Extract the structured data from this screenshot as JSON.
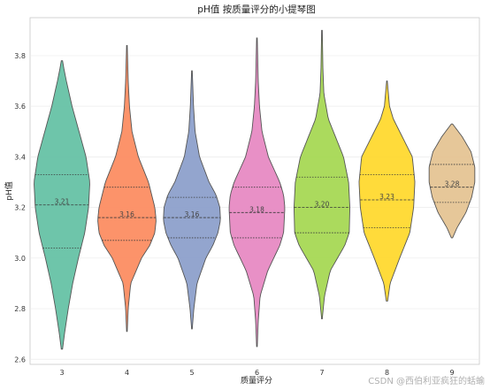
{
  "chart_data": {
    "type": "violin",
    "title": "pH值 按质量评分的小提琴图",
    "xlabel": "质量评分",
    "ylabel": "pH值",
    "ylim": [
      2.58,
      3.95
    ],
    "yticks": [
      "2.6",
      "2.8",
      "3.0",
      "3.2",
      "3.4",
      "3.6",
      "3.8"
    ],
    "grid": true,
    "categories": [
      "3",
      "4",
      "5",
      "6",
      "7",
      "8",
      "9"
    ],
    "colors": [
      "#66c2a5",
      "#fc8d62",
      "#8da0cb",
      "#e78ac3",
      "#a6d854",
      "#ffd92f",
      "#e5c494"
    ],
    "violins": [
      {
        "category": "3",
        "mean_label": "3.21",
        "min": 2.64,
        "max": 3.78,
        "q1": 3.04,
        "median": 3.21,
        "q3": 3.33,
        "profile": [
          [
            2.64,
            0.01
          ],
          [
            2.7,
            0.04
          ],
          [
            2.8,
            0.1
          ],
          [
            2.9,
            0.17
          ],
          [
            3.0,
            0.26
          ],
          [
            3.1,
            0.36
          ],
          [
            3.2,
            0.42
          ],
          [
            3.3,
            0.44
          ],
          [
            3.4,
            0.38
          ],
          [
            3.5,
            0.27
          ],
          [
            3.6,
            0.16
          ],
          [
            3.7,
            0.07
          ],
          [
            3.75,
            0.03
          ],
          [
            3.78,
            0.01
          ]
        ]
      },
      {
        "category": "4",
        "mean_label": "3.16",
        "min": 2.71,
        "max": 3.84,
        "q1": 3.07,
        "median": 3.16,
        "q3": 3.28,
        "profile": [
          [
            2.71,
            0.005
          ],
          [
            2.8,
            0.02
          ],
          [
            2.9,
            0.06
          ],
          [
            3.0,
            0.23
          ],
          [
            3.05,
            0.36
          ],
          [
            3.1,
            0.44
          ],
          [
            3.15,
            0.46
          ],
          [
            3.2,
            0.44
          ],
          [
            3.3,
            0.34
          ],
          [
            3.4,
            0.18
          ],
          [
            3.5,
            0.08
          ],
          [
            3.6,
            0.04
          ],
          [
            3.7,
            0.02
          ],
          [
            3.84,
            0.005
          ]
        ]
      },
      {
        "category": "5",
        "mean_label": "3.16",
        "min": 2.72,
        "max": 3.74,
        "q1": 3.08,
        "median": 3.16,
        "q3": 3.24,
        "profile": [
          [
            2.72,
            0.005
          ],
          [
            2.8,
            0.03
          ],
          [
            2.9,
            0.08
          ],
          [
            3.0,
            0.22
          ],
          [
            3.05,
            0.33
          ],
          [
            3.1,
            0.41
          ],
          [
            3.15,
            0.45
          ],
          [
            3.2,
            0.44
          ],
          [
            3.25,
            0.38
          ],
          [
            3.3,
            0.27
          ],
          [
            3.4,
            0.12
          ],
          [
            3.5,
            0.05
          ],
          [
            3.6,
            0.025
          ],
          [
            3.74,
            0.005
          ]
        ]
      },
      {
        "category": "6",
        "mean_label": "3.18",
        "min": 2.65,
        "max": 3.87,
        "q1": 3.08,
        "median": 3.18,
        "q3": 3.28,
        "profile": [
          [
            2.65,
            0.005
          ],
          [
            2.75,
            0.02
          ],
          [
            2.85,
            0.05
          ],
          [
            2.95,
            0.17
          ],
          [
            3.05,
            0.36
          ],
          [
            3.1,
            0.42
          ],
          [
            3.2,
            0.44
          ],
          [
            3.25,
            0.42
          ],
          [
            3.3,
            0.36
          ],
          [
            3.4,
            0.18
          ],
          [
            3.5,
            0.08
          ],
          [
            3.6,
            0.04
          ],
          [
            3.7,
            0.02
          ],
          [
            3.87,
            0.005
          ]
        ]
      },
      {
        "category": "7",
        "mean_label": "3.20",
        "min": 2.76,
        "max": 3.9,
        "q1": 3.1,
        "median": 3.2,
        "q3": 3.32,
        "profile": [
          [
            2.76,
            0.005
          ],
          [
            2.85,
            0.04
          ],
          [
            2.95,
            0.13
          ],
          [
            3.05,
            0.36
          ],
          [
            3.1,
            0.43
          ],
          [
            3.2,
            0.44
          ],
          [
            3.3,
            0.42
          ],
          [
            3.4,
            0.34
          ],
          [
            3.45,
            0.26
          ],
          [
            3.55,
            0.1
          ],
          [
            3.65,
            0.03
          ],
          [
            3.75,
            0.015
          ],
          [
            3.9,
            0.005
          ]
        ]
      },
      {
        "category": "8",
        "mean_label": "3.23",
        "min": 2.83,
        "max": 3.7,
        "q1": 3.12,
        "median": 3.23,
        "q3": 3.33,
        "profile": [
          [
            2.83,
            0.01
          ],
          [
            2.9,
            0.05
          ],
          [
            3.0,
            0.2
          ],
          [
            3.1,
            0.36
          ],
          [
            3.2,
            0.42
          ],
          [
            3.3,
            0.44
          ],
          [
            3.4,
            0.4
          ],
          [
            3.5,
            0.2
          ],
          [
            3.55,
            0.1
          ],
          [
            3.6,
            0.04
          ],
          [
            3.7,
            0.005
          ]
        ]
      },
      {
        "category": "9",
        "mean_label": "3.28",
        "min": 3.08,
        "max": 3.53,
        "q1": 3.22,
        "median": 3.28,
        "q3": 3.37,
        "profile": [
          [
            3.08,
            0.01
          ],
          [
            3.12,
            0.08
          ],
          [
            3.18,
            0.22
          ],
          [
            3.24,
            0.31
          ],
          [
            3.3,
            0.36
          ],
          [
            3.36,
            0.36
          ],
          [
            3.42,
            0.3
          ],
          [
            3.48,
            0.16
          ],
          [
            3.53,
            0.01
          ]
        ]
      }
    ]
  },
  "watermark": "CSDN @西伯利亚疯狂的蛞蝓"
}
